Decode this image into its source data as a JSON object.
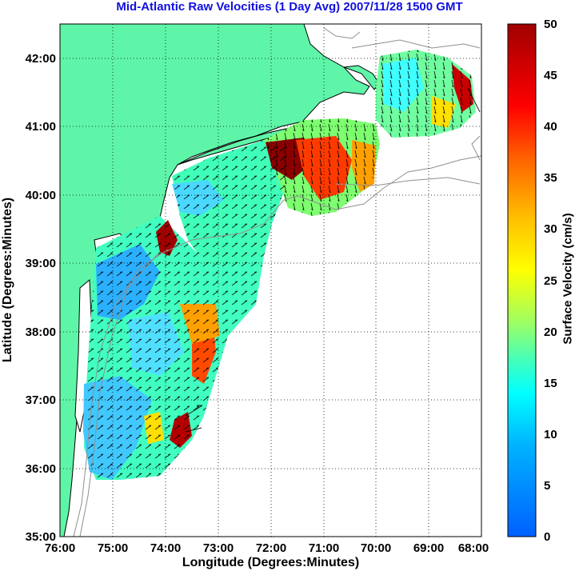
{
  "title": "Mid-Atlantic Raw Velocities (1 Day Avg) 2007/11/28 1500 GMT",
  "x_axis": {
    "label": "Longitude (Degrees:Minutes)",
    "ticks": [
      "76:00",
      "75:00",
      "74:00",
      "73:00",
      "72:00",
      "71:00",
      "70:00",
      "69:00",
      "68:00"
    ]
  },
  "y_axis": {
    "label": "Latitude (Degrees:Minutes)",
    "ticks": [
      "35:00",
      "36:00",
      "37:00",
      "38:00",
      "39:00",
      "40:00",
      "41:00",
      "42:00"
    ]
  },
  "colorbar": {
    "label": "Surface Velocity (cm/s)",
    "ticks": [
      "0",
      "5",
      "10",
      "15",
      "20",
      "25",
      "30",
      "35",
      "40",
      "45",
      "50"
    ],
    "min": 0,
    "max": 50
  },
  "colors": {
    "land": "#5ff5a8",
    "coastline": "#000000",
    "bathymetry": "#8f8f8f",
    "grid": "#000000",
    "title": "#1010e0"
  },
  "chart_data": {
    "type": "heatmap",
    "title": "Mid-Atlantic Raw Velocities (1 Day Avg) 2007/11/28 1500 GMT",
    "xlabel": "Longitude (Degrees:Minutes)",
    "ylabel": "Latitude (Degrees:Minutes)",
    "xlim": [
      -76,
      -68
    ],
    "ylim": [
      35,
      42.5
    ],
    "grid": true,
    "colorbar_label": "Surface Velocity (cm/s)",
    "colorbar_range": [
      0,
      50
    ],
    "colormap": "jet",
    "hotspots": [
      {
        "lon": -71.8,
        "lat": 40.5,
        "speed_cm_s": 48
      },
      {
        "lon": -73.8,
        "lat": 39.3,
        "speed_cm_s": 42
      },
      {
        "lon": -73.5,
        "lat": 36.5,
        "speed_cm_s": 48
      },
      {
        "lon": -73.3,
        "lat": 37.8,
        "speed_cm_s": 33
      },
      {
        "lon": -68.4,
        "lat": 41.6,
        "speed_cm_s": 45
      },
      {
        "lon": -70.6,
        "lat": 40.4,
        "speed_cm_s": 35
      }
    ]
  }
}
